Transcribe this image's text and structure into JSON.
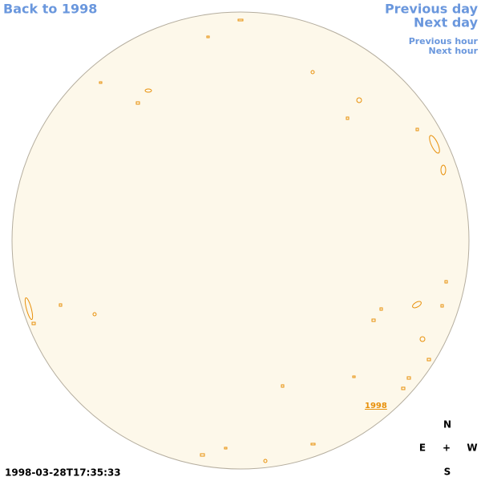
{
  "navigation": {
    "back": "Back to 1998",
    "previous_day": "Previous day",
    "next_day": "Next day",
    "previous_hour": "Previous hour",
    "next_hour": "Next hour"
  },
  "map": {
    "year_link": "1998",
    "timestamp": "1998-03-28T17:35:33"
  },
  "compass": {
    "north": "N",
    "east": "E",
    "center": "+",
    "west": "W",
    "south": "S"
  }
}
